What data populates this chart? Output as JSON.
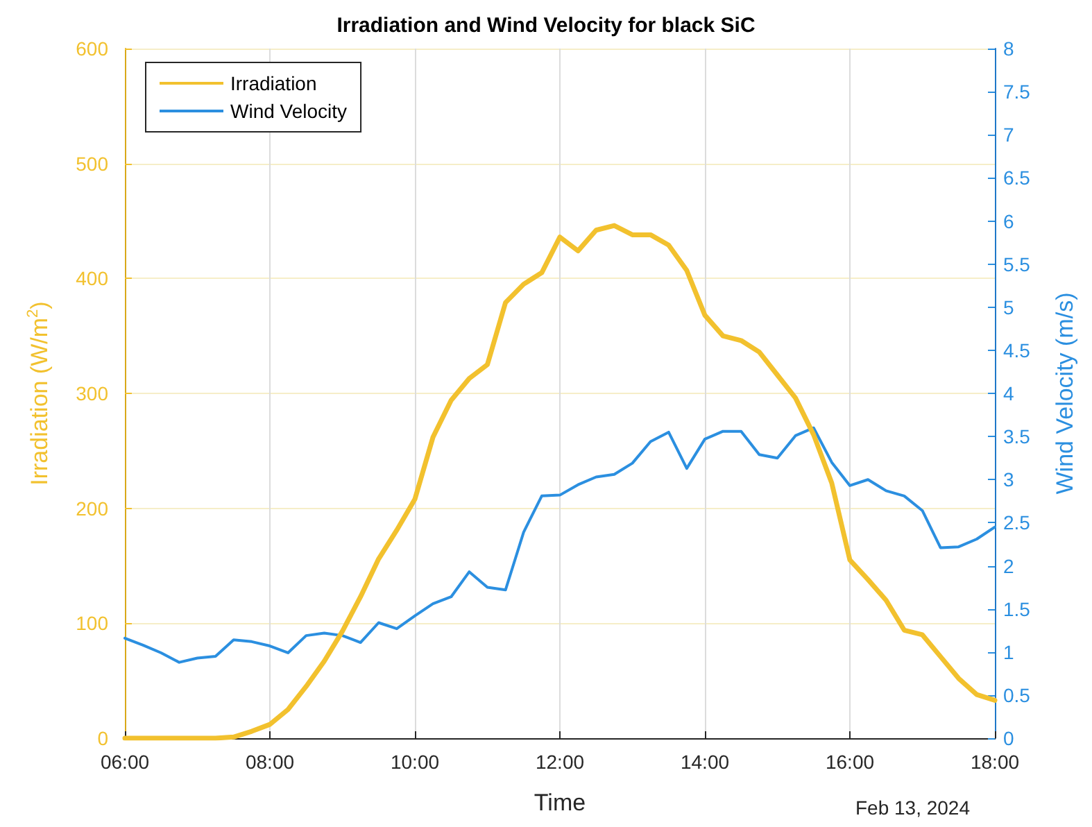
{
  "chart_data": {
    "type": "line",
    "title": "Irradiation and Wind Velocity for black SiC",
    "xlabel": "Time",
    "ylabel": "Irradiation (W/m$^{2}$)",
    "y2label": "Wind Velocity (m/s)",
    "annotations": [
      "Feb 13, 2024"
    ],
    "x": [
      6,
      6.25,
      6.5,
      6.75,
      7,
      7.25,
      7.5,
      7.75,
      8,
      8.25,
      8.5,
      8.75,
      9,
      9.25,
      9.5,
      9.75,
      10,
      10.25,
      10.5,
      10.75,
      11,
      11.25,
      11.5,
      11.75,
      12,
      12.25,
      12.5,
      12.75,
      13,
      13.25,
      13.5,
      13.75,
      14,
      14.25,
      14.5,
      14.75,
      15,
      15.25,
      15.5,
      15.75,
      16,
      16.25,
      16.5,
      16.75,
      17,
      17.25,
      17.5,
      17.75,
      18
    ],
    "series": [
      {
        "name": "Irradiation",
        "color": "#f2c12e",
        "values": [
          0,
          0,
          0,
          0,
          0,
          0,
          1,
          6,
          12,
          25,
          45,
          67,
          93,
          123,
          156,
          181,
          208,
          262,
          294,
          313,
          325,
          379,
          395,
          405,
          436,
          424,
          442,
          446,
          438,
          438,
          429,
          407,
          368,
          350,
          346,
          336,
          316,
          296,
          264,
          222,
          155,
          138,
          120,
          94,
          90,
          71,
          52,
          38,
          33
        ]
      },
      {
        "name": "Wind Velocity",
        "color": "#2b8fe0",
        "axis": "y2",
        "values": [
          1.16,
          1.08,
          0.99,
          0.88,
          0.93,
          0.95,
          1.14,
          1.12,
          1.07,
          0.99,
          1.19,
          1.22,
          1.19,
          1.11,
          1.34,
          1.27,
          1.42,
          1.56,
          1.64,
          1.93,
          1.75,
          1.72,
          2.39,
          2.81,
          2.82,
          2.94,
          3.03,
          3.06,
          3.19,
          3.44,
          3.55,
          3.13,
          3.47,
          3.56,
          3.56,
          3.29,
          3.25,
          3.51,
          3.6,
          3.2,
          2.93,
          3.0,
          2.87,
          2.81,
          2.64,
          2.21,
          2.22,
          2.31,
          2.45
        ]
      }
    ],
    "xlim": [
      6,
      18
    ],
    "xticks": [
      {
        "value": 6,
        "label": "06:00"
      },
      {
        "value": 8,
        "label": "08:00"
      },
      {
        "value": 10,
        "label": "10:00"
      },
      {
        "value": 12,
        "label": "12:00"
      },
      {
        "value": 14,
        "label": "14:00"
      },
      {
        "value": 16,
        "label": "16:00"
      },
      {
        "value": 18,
        "label": "18:00"
      }
    ],
    "ylim": [
      0,
      600
    ],
    "yticks": [
      0,
      100,
      200,
      300,
      400,
      500,
      600
    ],
    "y2lim": [
      0,
      8
    ],
    "y2ticks": [
      0,
      0.5,
      1,
      1.5,
      2,
      2.5,
      3,
      3.5,
      4,
      4.5,
      5,
      5.5,
      6,
      6.5,
      7,
      7.5,
      8
    ],
    "grid": true,
    "legend": "top left",
    "marker": "none",
    "line_style": "solid"
  }
}
